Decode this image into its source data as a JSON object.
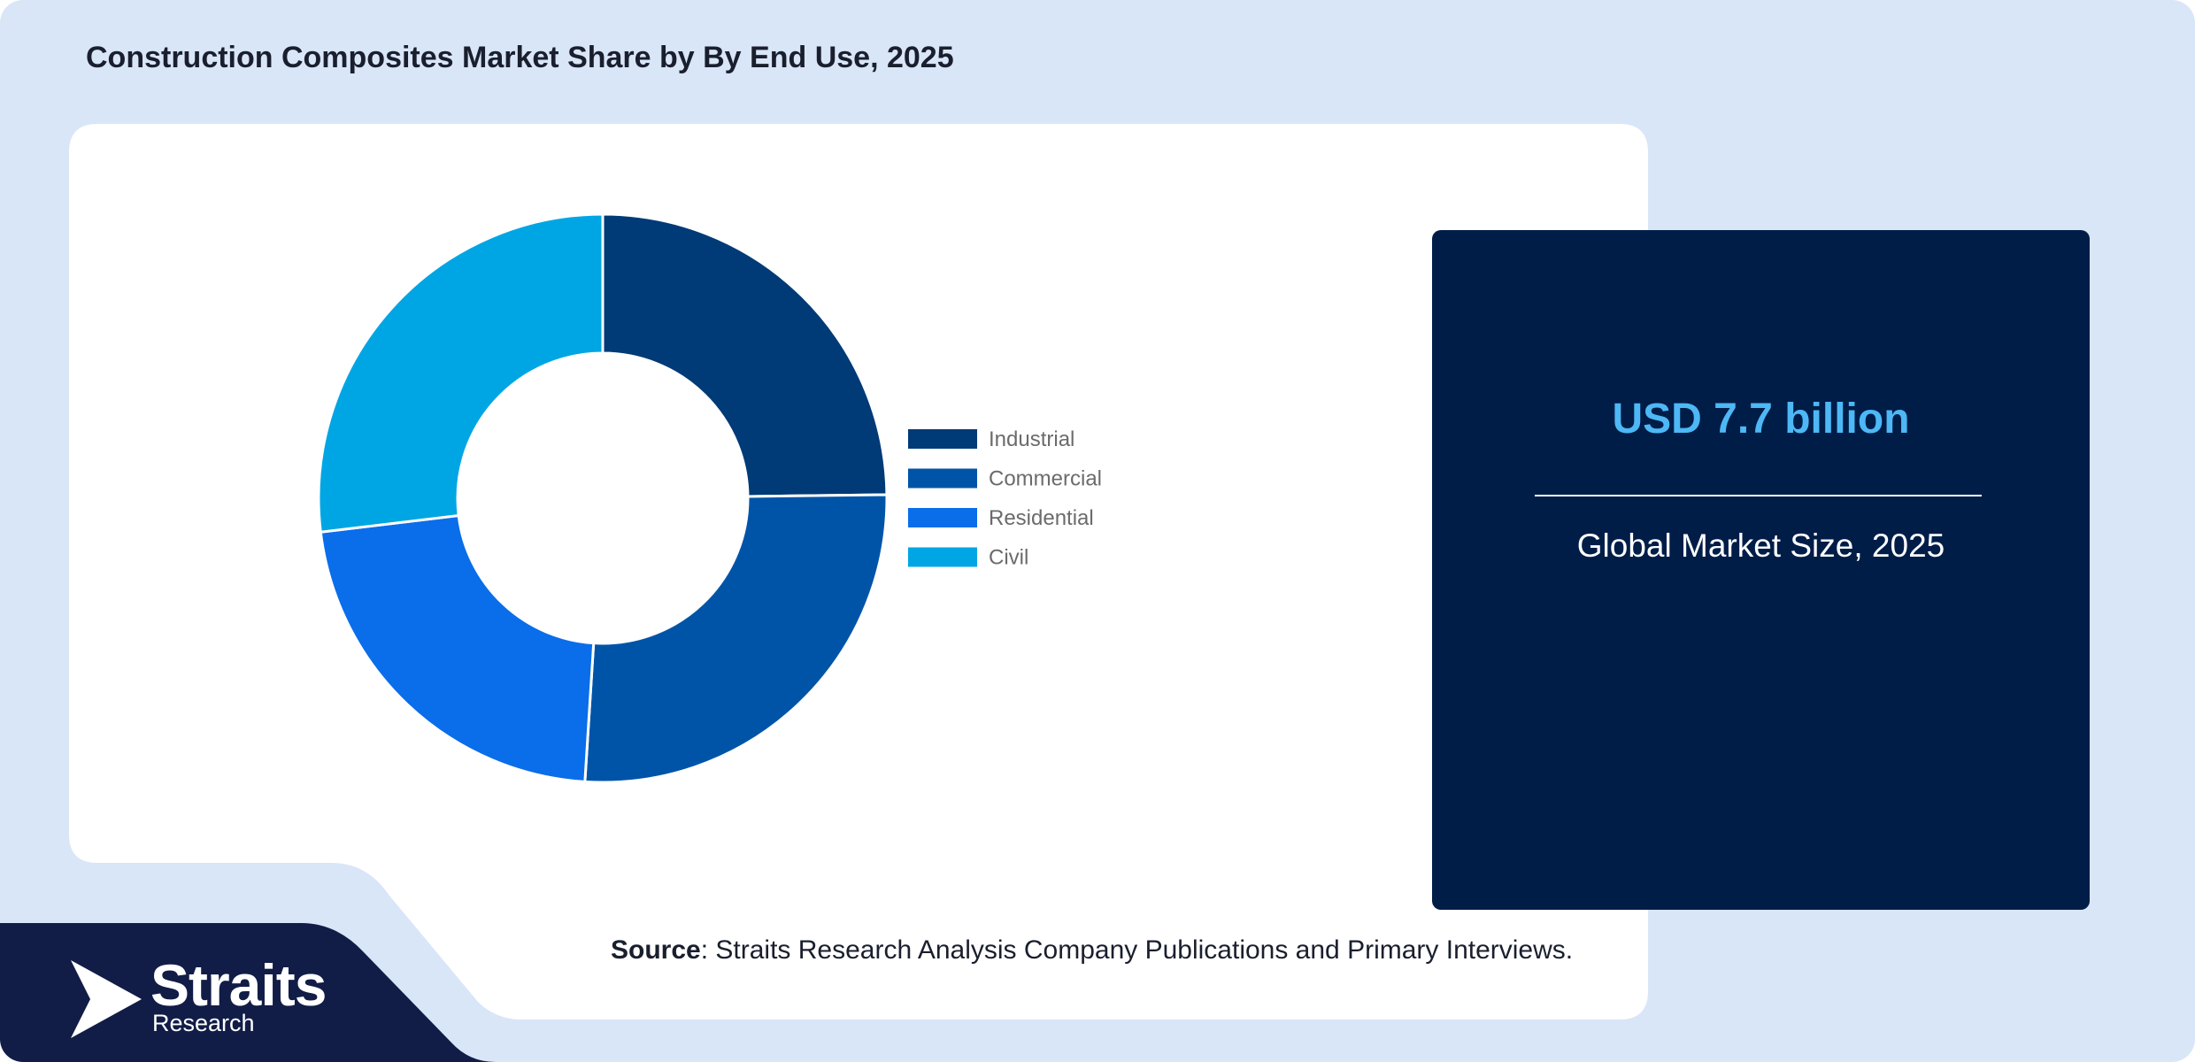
{
  "title": "Construction Composites Market Share by By End Use, 2025",
  "chart_data": {
    "type": "pie",
    "variant": "donut",
    "categories": [
      "Industrial",
      "Commercial",
      "Residential",
      "Civil"
    ],
    "values": [
      24.8,
      26.2,
      22.1,
      26.9
    ],
    "unit": "%",
    "colors": [
      "#003a77",
      "#0054a8",
      "#0a6dea",
      "#00a6e4"
    ],
    "legend_position": "right"
  },
  "info_card": {
    "value": "USD 7.7 billion",
    "caption": "Global Market Size, 2025"
  },
  "source": {
    "label": "Source",
    "text": ": Straits Research Analysis Company Publications and Primary Interviews."
  },
  "brand": {
    "name": "Straits",
    "subtitle": "Research",
    "icon": "straits-arrow-logo-icon"
  },
  "colors": {
    "background": "#d9e6f8",
    "card": "#001d48",
    "accent": "#4db8f5",
    "footer": "#111d47"
  }
}
